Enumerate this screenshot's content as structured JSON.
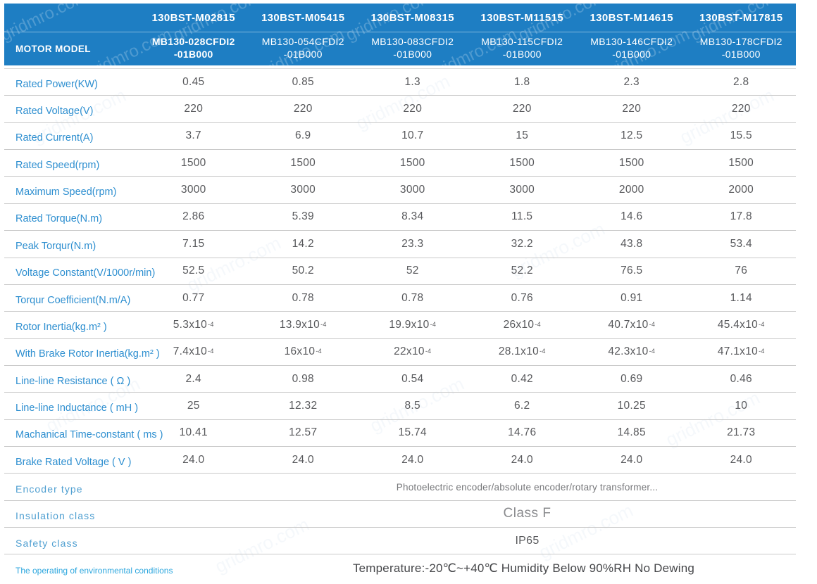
{
  "watermark": {
    "text": "gridmro.com"
  },
  "colors": {
    "header_bg": "#1E7EC3",
    "label_blue": "#2E8FD0",
    "env_label_blue": "#2BA6DE",
    "value_gray": "#58595C",
    "divider_gray": "#C9C9C9"
  },
  "header": {
    "label": "MOTOR MODEL",
    "columns": [
      {
        "model": "130BST-M02815",
        "part_line1": "MB130-028CFDI2",
        "part_line2": "-01B000",
        "bold": true
      },
      {
        "model": "130BST-M05415",
        "part_line1": "MB130-054CFDI2",
        "part_line2": "-01B000",
        "bold": false
      },
      {
        "model": "130BST-M08315",
        "part_line1": "MB130-083CFDI2",
        "part_line2": "-01B000",
        "bold": false
      },
      {
        "model": "130BST-M11515",
        "part_line1": "MB130-115CFDI2",
        "part_line2": "-01B000",
        "bold": false
      },
      {
        "model": "130BST-M14615",
        "part_line1": "MB130-146CFDI2",
        "part_line2": "-01B000",
        "bold": false
      },
      {
        "model": "130BST-M17815",
        "part_line1": "MB130-178CFDI2",
        "part_line2": "-01B000",
        "bold": false
      }
    ]
  },
  "rows": [
    {
      "label": "Rated Power(KW)",
      "values": [
        "0.45",
        "0.85",
        "1.3",
        "1.8",
        "2.3",
        "2.8"
      ]
    },
    {
      "label": "Rated Voltage(V)",
      "values": [
        "220",
        "220",
        "220",
        "220",
        "220",
        "220"
      ]
    },
    {
      "label": "Rated Current(A)",
      "values": [
        "3.7",
        "6.9",
        "10.7",
        "15",
        "12.5",
        "15.5"
      ]
    },
    {
      "label": "Rated Speed(rpm)",
      "values": [
        "1500",
        "1500",
        "1500",
        "1500",
        "1500",
        "1500"
      ]
    },
    {
      "label": "Maximum Speed(rpm)",
      "values": [
        "3000",
        "3000",
        "3000",
        "3000",
        "2000",
        "2000"
      ]
    },
    {
      "label": "Rated Torque(N.m)",
      "values": [
        "2.86",
        "5.39",
        "8.34",
        "11.5",
        "14.6",
        "17.8"
      ]
    },
    {
      "label": "Peak Torqur(N.m)",
      "values": [
        "7.15",
        "14.2",
        "23.3",
        "32.2",
        "43.8",
        "53.4"
      ]
    },
    {
      "label": "Voltage Constant(V/1000r/min)",
      "values": [
        "52.5",
        "50.2",
        "52",
        "52.2",
        "76.5",
        "76"
      ]
    },
    {
      "label": "Torqur Coefficient(N.m/A)",
      "values": [
        "0.77",
        "0.78",
        "0.78",
        "0.76",
        "0.91",
        "1.14"
      ]
    },
    {
      "label": "Rotor Inertia(kg.m² )",
      "values": [
        "5.3x10",
        "13.9x10",
        "19.9x10",
        "26x10",
        "40.7x10",
        "45.4x10"
      ],
      "sup": "-4"
    },
    {
      "label": "With Brake Rotor Inertia(kg.m² )",
      "values": [
        "7.4x10",
        "16x10",
        "22x10",
        "28.1x10",
        "42.3x10",
        "47.1x10"
      ],
      "sup": "-4"
    },
    {
      "label": "Line-line Resistance ( Ω )",
      "values": [
        "2.4",
        "0.98",
        "0.54",
        "0.42",
        "0.69",
        "0.46"
      ]
    },
    {
      "label": "Line-line Inductance ( mH )",
      "values": [
        "25",
        "12.32",
        "8.5",
        "6.2",
        "10.25",
        "10"
      ]
    },
    {
      "label": "Machanical Time-constant ( ms )",
      "values": [
        "10.41",
        "12.57",
        "15.74",
        "14.76",
        "14.85",
        "21.73"
      ]
    },
    {
      "label": "Brake Rated Voltage ( V )",
      "values": [
        "24.0",
        "24.0",
        "24.0",
        "24.0",
        "24.0",
        "24.0"
      ]
    },
    {
      "label": "Encoder type",
      "label_class": "wide",
      "span": "Photoelectric encoder/absolute encoder/rotary transformer...",
      "span_class": "enc"
    },
    {
      "label": "Insulation class",
      "label_class": "wide",
      "span": "Class F",
      "span_class": "classf"
    },
    {
      "label": "Safety class",
      "label_class": "wide",
      "span": "IP65",
      "span_class": "ip"
    },
    {
      "label": "The operating of environmental conditions",
      "label_class": "env",
      "span": "Temperature:-20℃~+40℃  Humidity Below 90%RH No Dewing",
      "span_class": "temp"
    }
  ]
}
